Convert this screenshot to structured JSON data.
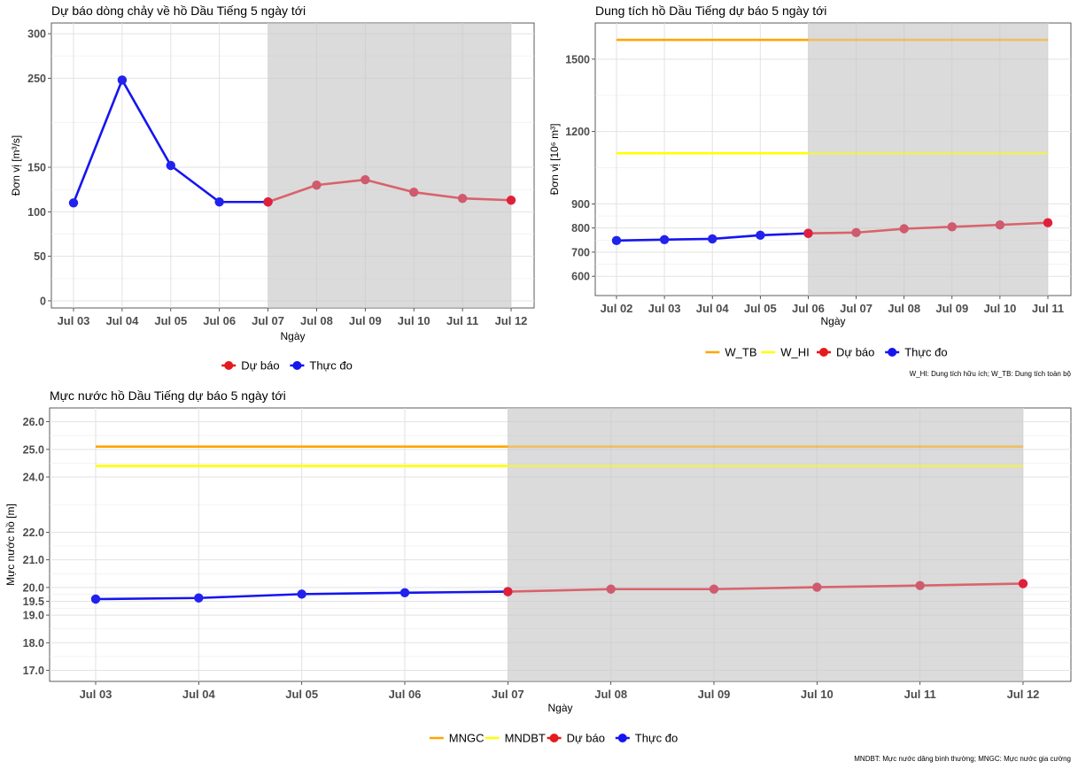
{
  "chart_data": [
    {
      "id": "inflow",
      "type": "line",
      "title": "Dự báo dòng chảy về hồ Dầu Tiếng 5 ngày tới",
      "xlabel": "Ngày",
      "ylabel": "Đơn vị [m³/s]",
      "categories": [
        "Jul 03",
        "Jul 04",
        "Jul 05",
        "Jul 06",
        "Jul 07",
        "Jul 08",
        "Jul 09",
        "Jul 10",
        "Jul 11",
        "Jul 12"
      ],
      "yticks": [
        0,
        50,
        100,
        150,
        250,
        300
      ],
      "ylim": [
        -8,
        312
      ],
      "forecast_start_index": 4,
      "series": [
        {
          "name": "Thực đo",
          "color": "#1515f0",
          "values": [
            110,
            248,
            152,
            111,
            111,
            null,
            null,
            null,
            null,
            null
          ]
        },
        {
          "name": "Dự báo",
          "color": "#e41a1c",
          "values": [
            null,
            null,
            null,
            null,
            111,
            130,
            136,
            122,
            115,
            113
          ]
        }
      ],
      "legend": [
        "Dự báo",
        "Thực đo"
      ],
      "note": ""
    },
    {
      "id": "storage",
      "type": "line",
      "title": "Dung tích hồ Dầu Tiếng dự báo 5 ngày tới",
      "xlabel": "Ngày",
      "ylabel": "Đơn vị [10⁶ m³]",
      "categories": [
        "Jul 02",
        "Jul 03",
        "Jul 04",
        "Jul 05",
        "Jul 06",
        "Jul 07",
        "Jul 08",
        "Jul 09",
        "Jul 10",
        "Jul 11"
      ],
      "yticks": [
        600,
        700,
        800,
        900,
        1200,
        1500
      ],
      "ylim": [
        520,
        1650
      ],
      "forecast_start_index": 4,
      "reference_lines": [
        {
          "name": "W_TB",
          "color": "#ffa500",
          "value": 1580
        },
        {
          "name": "W_HI",
          "color": "#ffff00",
          "value": 1110
        }
      ],
      "series": [
        {
          "name": "Thực đo",
          "color": "#1515f0",
          "values": [
            748,
            752,
            755,
            770,
            778,
            null,
            null,
            null,
            null,
            null
          ]
        },
        {
          "name": "Dự báo",
          "color": "#e41a1c",
          "values": [
            null,
            null,
            null,
            null,
            778,
            781,
            797,
            805,
            813,
            822
          ]
        }
      ],
      "legend": [
        "W_TB",
        "W_HI",
        "Dự báo",
        "Thực đo"
      ],
      "note": "W_HI: Dung tích hữu ích; W_TB: Dung tích toàn bộ"
    },
    {
      "id": "level",
      "type": "line",
      "title": "Mực nước hồ Dầu Tiếng dự báo 5 ngày tới",
      "xlabel": "Ngày",
      "ylabel": "Mực nước hồ [m]",
      "categories": [
        "Jul 03",
        "Jul 04",
        "Jul 05",
        "Jul 06",
        "Jul 07",
        "Jul 08",
        "Jul 09",
        "Jul 10",
        "Jul 11",
        "Jul 12"
      ],
      "yticks": [
        17.0,
        18.0,
        19.0,
        19.5,
        20.0,
        21.0,
        22.0,
        24.0,
        25.0,
        26.0
      ],
      "ytick_labels": [
        "17.0",
        "18.0",
        "19.0",
        "19.5",
        "20.0",
        "21.0",
        "22.0",
        "24.0",
        "25.0",
        "26.0"
      ],
      "ylim": [
        16.6,
        26.5
      ],
      "forecast_start_index": 4,
      "reference_lines": [
        {
          "name": "MNGC",
          "color": "#ffa500",
          "value": 25.1
        },
        {
          "name": "MNDBT",
          "color": "#ffff00",
          "value": 24.4
        }
      ],
      "series": [
        {
          "name": "Thực đo",
          "color": "#1515f0",
          "values": [
            19.58,
            19.62,
            19.76,
            19.81,
            19.85,
            null,
            null,
            null,
            null,
            null
          ]
        },
        {
          "name": "Dự báo",
          "color": "#e41a1c",
          "values": [
            null,
            null,
            null,
            null,
            19.85,
            19.94,
            19.94,
            20.01,
            20.07,
            20.14
          ]
        }
      ],
      "legend": [
        "MNGC",
        "MNDBT",
        "Dự báo",
        "Thực đo"
      ],
      "note": "MNDBT: Mực nước dâng bình thường; MNGC: Mực nước gia cường"
    }
  ]
}
